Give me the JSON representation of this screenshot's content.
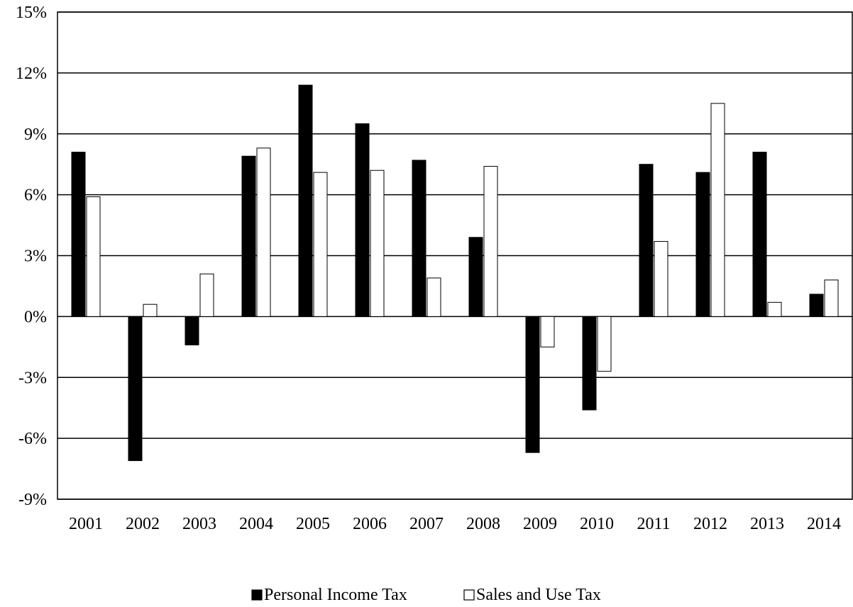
{
  "chart_data": {
    "type": "bar",
    "title": "",
    "xlabel": "",
    "ylabel": "",
    "categories": [
      "2001",
      "2002",
      "2003",
      "2004",
      "2005",
      "2006",
      "2007",
      "2008",
      "2009",
      "2010",
      "2011",
      "2012",
      "2013",
      "2014"
    ],
    "series": [
      {
        "name": "Personal Income Tax",
        "color": "#000000",
        "values": [
          8.1,
          -7.1,
          -1.4,
          7.9,
          11.4,
          9.5,
          7.7,
          3.9,
          -6.7,
          -4.6,
          7.5,
          7.1,
          8.1,
          1.1
        ]
      },
      {
        "name": "Sales and Use Tax",
        "color": "#ffffff",
        "values": [
          5.9,
          0.6,
          2.1,
          8.3,
          7.1,
          7.2,
          1.9,
          7.4,
          -1.5,
          -2.7,
          3.7,
          10.5,
          0.7,
          1.8
        ]
      }
    ],
    "ylim": [
      -9,
      15
    ],
    "yticks": [
      -9,
      -6,
      -3,
      0,
      3,
      6,
      9,
      12,
      15
    ],
    "ytick_labels": [
      "-9%",
      "-6%",
      "-3%",
      "0%",
      "3%",
      "6%",
      "9%",
      "12%",
      "15%"
    ],
    "grid": true,
    "legend": "bottom-center"
  }
}
